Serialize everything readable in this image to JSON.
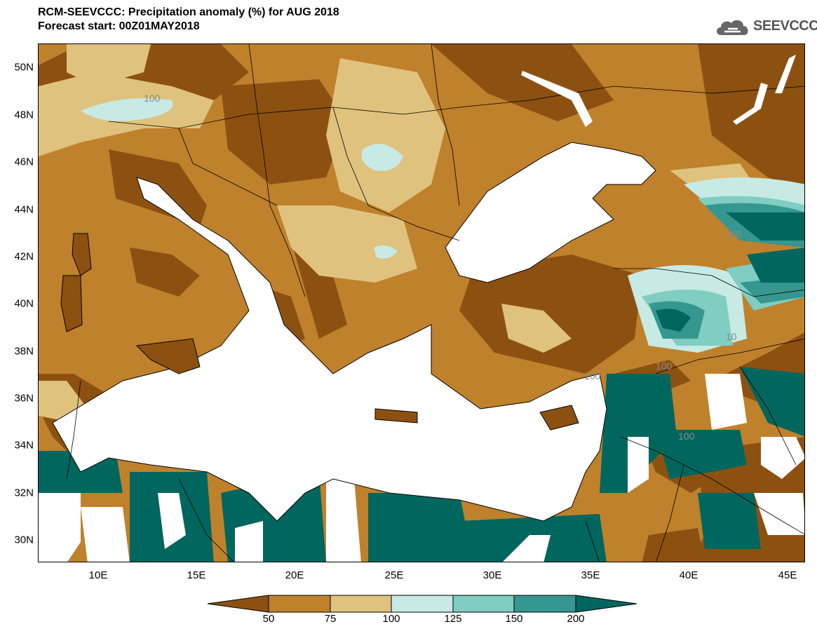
{
  "header": {
    "title_line1": "RCM-SEEVCCC: Precipitation anomaly (%) for AUG 2018",
    "title_line2": "Forecast start: 00Z01MAY2018"
  },
  "logo": {
    "text": "SEEVCCC",
    "icon": "cloud-icon"
  },
  "map": {
    "lat_labels": [
      "50N",
      "48N",
      "46N",
      "44N",
      "42N",
      "40N",
      "38N",
      "36N",
      "34N",
      "32N",
      "30N"
    ],
    "lon_labels": [
      "10E",
      "15E",
      "20E",
      "25E",
      "30E",
      "35E",
      "40E",
      "45E"
    ],
    "contour_labels": [
      "100",
      "100",
      "100",
      "100",
      "100",
      "10"
    ],
    "colors": {
      "land_lt50": "#8c5111",
      "land_50_75": "#bf812c",
      "land_75_100": "#dfc27d",
      "land_100_125": "#c7eae5",
      "land_125_150": "#80cdc1",
      "land_150_200": "#35978f",
      "land_gt200": "#01665e",
      "sea": "#ffffff"
    }
  },
  "colorbar": {
    "labels": [
      "50",
      "75",
      "100",
      "125",
      "150",
      "200"
    ],
    "colors": [
      "#8c5111",
      "#bf812c",
      "#dfc27d",
      "#c7eae5",
      "#80cdc1",
      "#35978f",
      "#01665e"
    ]
  }
}
